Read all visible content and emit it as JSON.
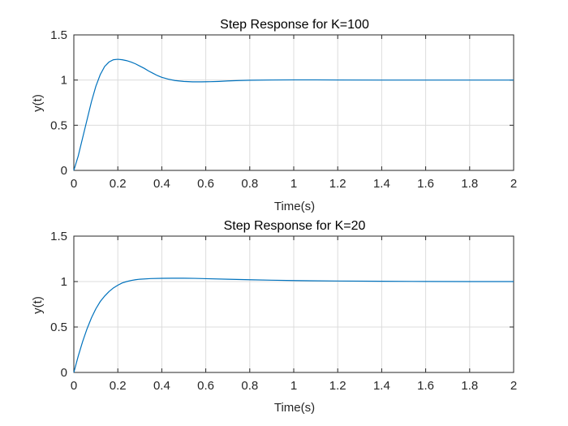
{
  "chart_data": [
    {
      "type": "line",
      "title": "Step Response for K=100",
      "xlabel": "Time(s)",
      "ylabel": "y(t)",
      "xlim": [
        0,
        2
      ],
      "ylim": [
        0,
        1.5
      ],
      "xticks": [
        0,
        0.2,
        0.4,
        0.6,
        0.8,
        1,
        1.2,
        1.4,
        1.6,
        1.8,
        2
      ],
      "xtick_labels": [
        "0",
        "0.2",
        "0.4",
        "0.6",
        "0.8",
        "1",
        "1.2",
        "1.4",
        "1.6",
        "1.8",
        "2"
      ],
      "yticks": [
        0,
        0.5,
        1,
        1.5
      ],
      "ytick_labels": [
        "0",
        "0.5",
        "1",
        "1.5"
      ],
      "grid": true,
      "color": "#0072bd",
      "series": [
        {
          "x": [
            0,
            0.02,
            0.04,
            0.06,
            0.08,
            0.1,
            0.12,
            0.14,
            0.16,
            0.18,
            0.2,
            0.22,
            0.24,
            0.26,
            0.28,
            0.3,
            0.32,
            0.34,
            0.36,
            0.38,
            0.4,
            0.43,
            0.46,
            0.5,
            0.54,
            0.58,
            0.62,
            0.66,
            0.7,
            0.75,
            0.8,
            0.9,
            1,
            1.1,
            1.2,
            1.4,
            1.6,
            1.8,
            2
          ],
          "y": [
            0,
            0.16,
            0.36,
            0.56,
            0.76,
            0.93,
            1.06,
            1.15,
            1.2,
            1.225,
            1.23,
            1.225,
            1.215,
            1.2,
            1.18,
            1.155,
            1.13,
            1.1,
            1.075,
            1.05,
            1.03,
            1.01,
            0.995,
            0.985,
            0.98,
            0.98,
            0.982,
            0.985,
            0.99,
            0.995,
            0.998,
            1.001,
            1.002,
            1.002,
            1.001,
            1.0,
            1.0,
            1.0,
            1.0
          ]
        }
      ]
    },
    {
      "type": "line",
      "title": "Step Response for K=20",
      "xlabel": "Time(s)",
      "ylabel": "y(t)",
      "xlim": [
        0,
        2
      ],
      "ylim": [
        0,
        1.5
      ],
      "xticks": [
        0,
        0.2,
        0.4,
        0.6,
        0.8,
        1,
        1.2,
        1.4,
        1.6,
        1.8,
        2
      ],
      "xtick_labels": [
        "0",
        "0.2",
        "0.4",
        "0.6",
        "0.8",
        "1",
        "1.2",
        "1.4",
        "1.6",
        "1.8",
        "2"
      ],
      "yticks": [
        0,
        0.5,
        1,
        1.5
      ],
      "ytick_labels": [
        "0",
        "0.5",
        "1",
        "1.5"
      ],
      "grid": true,
      "color": "#0072bd",
      "series": [
        {
          "x": [
            0,
            0.02,
            0.04,
            0.06,
            0.08,
            0.1,
            0.12,
            0.14,
            0.16,
            0.18,
            0.2,
            0.22,
            0.24,
            0.26,
            0.28,
            0.3,
            0.35,
            0.4,
            0.45,
            0.5,
            0.55,
            0.6,
            0.7,
            0.8,
            0.9,
            1,
            1.2,
            1.4,
            1.6,
            1.8,
            2
          ],
          "y": [
            0,
            0.18,
            0.34,
            0.48,
            0.6,
            0.7,
            0.78,
            0.84,
            0.89,
            0.93,
            0.96,
            0.985,
            1.0,
            1.012,
            1.02,
            1.026,
            1.033,
            1.036,
            1.037,
            1.037,
            1.035,
            1.032,
            1.026,
            1.02,
            1.015,
            1.011,
            1.006,
            1.003,
            1.001,
            1.0,
            1.0
          ]
        }
      ]
    }
  ]
}
